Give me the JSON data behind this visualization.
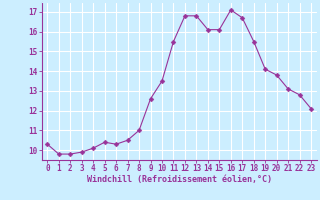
{
  "x": [
    0,
    1,
    2,
    3,
    4,
    5,
    6,
    7,
    8,
    9,
    10,
    11,
    12,
    13,
    14,
    15,
    16,
    17,
    18,
    19,
    20,
    21,
    22,
    23
  ],
  "y": [
    10.3,
    9.8,
    9.8,
    9.9,
    10.1,
    10.4,
    10.3,
    10.5,
    11.0,
    12.6,
    13.5,
    15.5,
    16.8,
    16.8,
    16.1,
    16.1,
    17.1,
    16.7,
    15.5,
    14.1,
    13.8,
    13.1,
    12.8,
    12.1
  ],
  "line_color": "#993399",
  "marker": "D",
  "marker_size": 2.5,
  "bg_color": "#cceeff",
  "grid_color": "#ffffff",
  "xlabel": "Windchill (Refroidissement éolien,°C)",
  "xlabel_color": "#993399",
  "tick_color": "#993399",
  "ylim": [
    9.5,
    17.5
  ],
  "xlim": [
    -0.5,
    23.5
  ],
  "yticks": [
    10,
    11,
    12,
    13,
    14,
    15,
    16,
    17
  ],
  "xticks": [
    0,
    1,
    2,
    3,
    4,
    5,
    6,
    7,
    8,
    9,
    10,
    11,
    12,
    13,
    14,
    15,
    16,
    17,
    18,
    19,
    20,
    21,
    22,
    23
  ]
}
